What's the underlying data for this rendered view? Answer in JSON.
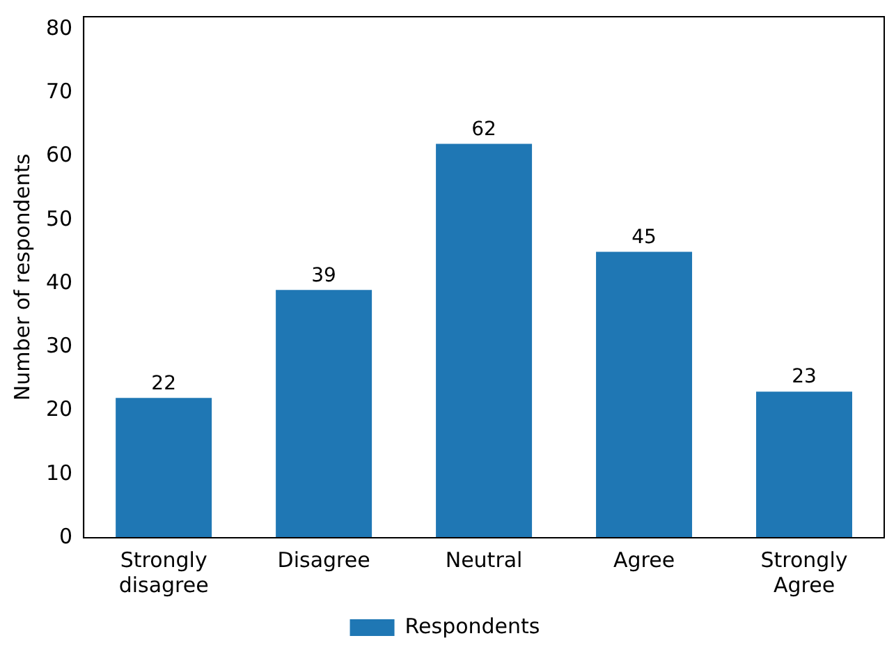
{
  "chart_data": {
    "type": "bar",
    "ylabel": "Number of respondents",
    "categories": [
      "Strongly disagree",
      "Disagree",
      "Neutral",
      "Agree",
      "Strongly Agree"
    ],
    "series": [
      {
        "name": "Respondents",
        "color": "#1f77b4",
        "values": [
          22,
          39,
          62,
          45,
          23
        ]
      }
    ],
    "ylim": [
      0,
      82
    ],
    "yticks": [
      0,
      10,
      20,
      30,
      40,
      50,
      60,
      70,
      80
    ],
    "data_labels": true,
    "legend": "bottom",
    "grid": false
  }
}
